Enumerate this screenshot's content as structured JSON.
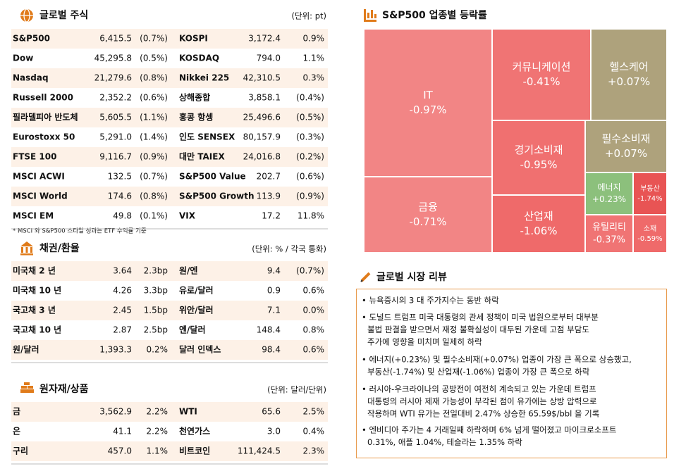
{
  "equities": {
    "title": "글로벌 주식",
    "unit": "(단위: pt)",
    "rows": [
      [
        "S&P500",
        "6,415.5",
        "(0.7%)",
        "KOSPI",
        "3,172.4",
        "0.9%"
      ],
      [
        "Dow",
        "45,295.8",
        "(0.5%)",
        "KOSDAQ",
        "794.0",
        "1.1%"
      ],
      [
        "Nasdaq",
        "21,279.6",
        "(0.8%)",
        "Nikkei 225",
        "42,310.5",
        "0.3%"
      ],
      [
        "Russell 2000",
        "2,352.2",
        "(0.6%)",
        "상해종합",
        "3,858.1",
        "(0.4%)"
      ],
      [
        "필라델피아 반도체",
        "5,605.5",
        "(1.1%)",
        "홍콩 항셍",
        "25,496.6",
        "(0.5%)"
      ],
      [
        "Eurostoxx 50",
        "5,291.0",
        "(1.4%)",
        "인도 SENSEX",
        "80,157.9",
        "(0.3%)"
      ],
      [
        "FTSE 100",
        "9,116.7",
        "(0.9%)",
        "대만 TAIEX",
        "24,016.8",
        "(0.2%)"
      ],
      [
        "MSCI ACWI",
        "132.5",
        "(0.7%)",
        "S&P500 Value",
        "202.7",
        "(0.6%)"
      ],
      [
        "MSCI World",
        "174.6",
        "(0.8%)",
        "S&P500 Growth",
        "113.9",
        "(0.9%)"
      ],
      [
        "MSCI EM",
        "49.8",
        "(0.1%)",
        "VIX",
        "17.2",
        "11.8%"
      ]
    ],
    "footnote": "* MSCI 와 S&P500 스타일 성과는 ETF 수익률 기준"
  },
  "bonds": {
    "title": "채권/환율",
    "unit": "(단위: % / 각국 통화)",
    "rows": [
      [
        "미국채 2 년",
        "3.64",
        "2.3bp",
        "원/엔",
        "9.4",
        "(0.7%)"
      ],
      [
        "미국채 10 년",
        "4.26",
        "3.3bp",
        "유로/달러",
        "0.9",
        "0.6%"
      ],
      [
        "국고채 3 년",
        "2.45",
        "1.5bp",
        "위안/달러",
        "7.1",
        "0.0%"
      ],
      [
        "국고채 10 년",
        "2.87",
        "2.5bp",
        "엔/달러",
        "148.4",
        "0.8%"
      ],
      [
        "원/달러",
        "1,393.3",
        "0.2%",
        "달러 인덱스",
        "98.4",
        "0.6%"
      ]
    ]
  },
  "commodities": {
    "title": "원자재/상품",
    "unit": "(단위: 달러/단위)",
    "rows": [
      [
        "금",
        "3,562.9",
        "2.2%",
        "WTI",
        "65.6",
        "2.5%"
      ],
      [
        "은",
        "41.1",
        "2.2%",
        "천연가스",
        "3.0",
        "0.4%"
      ],
      [
        "구리",
        "457.0",
        "1.1%",
        "비트코인",
        "111,424.5",
        "2.3%"
      ]
    ]
  },
  "treemap": {
    "title": "S&P500 업종별 등락률",
    "tiles": [
      {
        "label": "IT",
        "value": "-0.97%"
      },
      {
        "label": "금융",
        "value": "-0.71%"
      },
      {
        "label": "커뮤니케이션",
        "value": "-0.41%"
      },
      {
        "label": "헬스케어",
        "value": "+0.07%"
      },
      {
        "label": "경기소비재",
        "value": "-0.95%"
      },
      {
        "label": "필수소비재",
        "value": "+0.07%"
      },
      {
        "label": "산업재",
        "value": "-1.06%"
      },
      {
        "label": "에너지",
        "value": "+0.23%"
      },
      {
        "label": "부동산",
        "value": "-1.74%"
      },
      {
        "label": "유틸리티",
        "value": "-0.37%"
      },
      {
        "label": "소재",
        "value": "-0.59%"
      }
    ]
  },
  "review": {
    "title": "글로벌 시장 리뷰",
    "items": [
      [
        "• 뉴욕증시의 3 대 주가지수는 동반 하락"
      ],
      [
        "• 도널드 트럼프 미국 대통령의 관세 정책이 미국 법원으로부터 대부분",
        "불법 판결을 받으면서 재정 불확실성이 대두된 가운데 고점 부담도",
        "주가에 영향을 미치며 일제히 하락"
      ],
      [
        "• 에너지(+0.23%) 및 필수소비재(+0.07%) 업종이 가장 큰 폭으로 상승했고,",
        "부동산(-1.74%) 및 산업재(-1.06%) 업종이 가장 큰 폭으로 하락"
      ],
      [
        "• 러시아-우크라이나의 공방전이 여전히 계속되고 있는 가운데 트럼프",
        "대통령의 러시아 제재 가능성이 부각된 점이 유가에는 상방 압력으로",
        "작용하며 WTI 유가는 전일대비 2.47% 상승한 65.59$/bbl 을 기록"
      ],
      [
        "• 엔비디아 주가는 4 거래일째 하락하며 6% 넘게 떨어졌고 마이크로소프트",
        "0.31%, 애플 1.04%, 테슬라는 1.35% 하락"
      ]
    ]
  }
}
